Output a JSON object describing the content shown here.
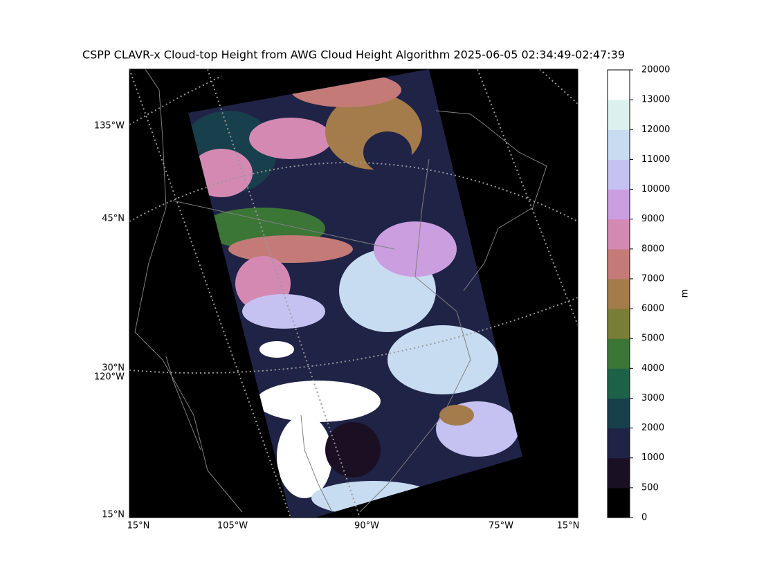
{
  "title": "CSPP CLAVR-x Cloud-top Height from AWG Cloud Height Algorithm 2025-06-05 02:34:49-02:47:39",
  "map": {
    "left_labels": [
      "135°W",
      "45°N",
      "30°N",
      "120°W",
      "15°N"
    ],
    "bottom_labels": [
      "15°N",
      "105°W",
      "90°W",
      "75°W",
      "15°N"
    ]
  },
  "colorbar": {
    "label": "m",
    "levels": [
      0,
      500,
      1000,
      2000,
      3000,
      4000,
      5000,
      6000,
      7000,
      8000,
      9000,
      10000,
      11000,
      12000,
      13000,
      20000
    ],
    "colors": [
      "#000000",
      "#1b0f24",
      "#1f2346",
      "#183f4c",
      "#1e6149",
      "#3b7636",
      "#7a7d35",
      "#a47b4b",
      "#c47b78",
      "#d489b3",
      "#cb9ee0",
      "#c5c2f2",
      "#c7dcf1",
      "#dcf1ed",
      "#ffffff"
    ]
  }
}
